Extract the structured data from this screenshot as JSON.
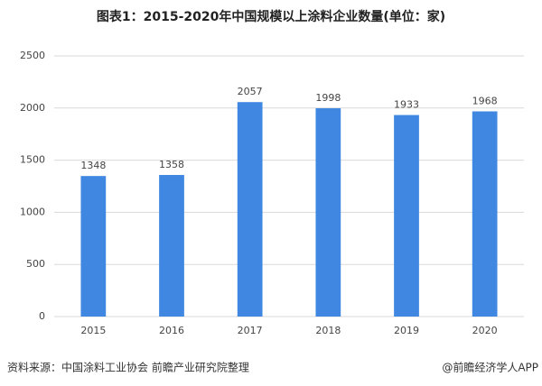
{
  "chart_data": {
    "type": "bar",
    "title": "图表1：2015-2020年中国规模以上涂料企业数量(单位：家)",
    "categories": [
      "2015",
      "2016",
      "2017",
      "2018",
      "2019",
      "2020"
    ],
    "values": [
      1348,
      1358,
      2057,
      1998,
      1933,
      1968
    ],
    "color": "#3f87e0",
    "ylim": [
      0,
      2500
    ],
    "yticks": [
      0,
      500,
      1000,
      1500,
      2000,
      2500
    ],
    "grid": true,
    "source": "资料来源：中国涂料工业协会 前瞻产业研究院整理",
    "credit": "@前瞻经济学人APP"
  }
}
